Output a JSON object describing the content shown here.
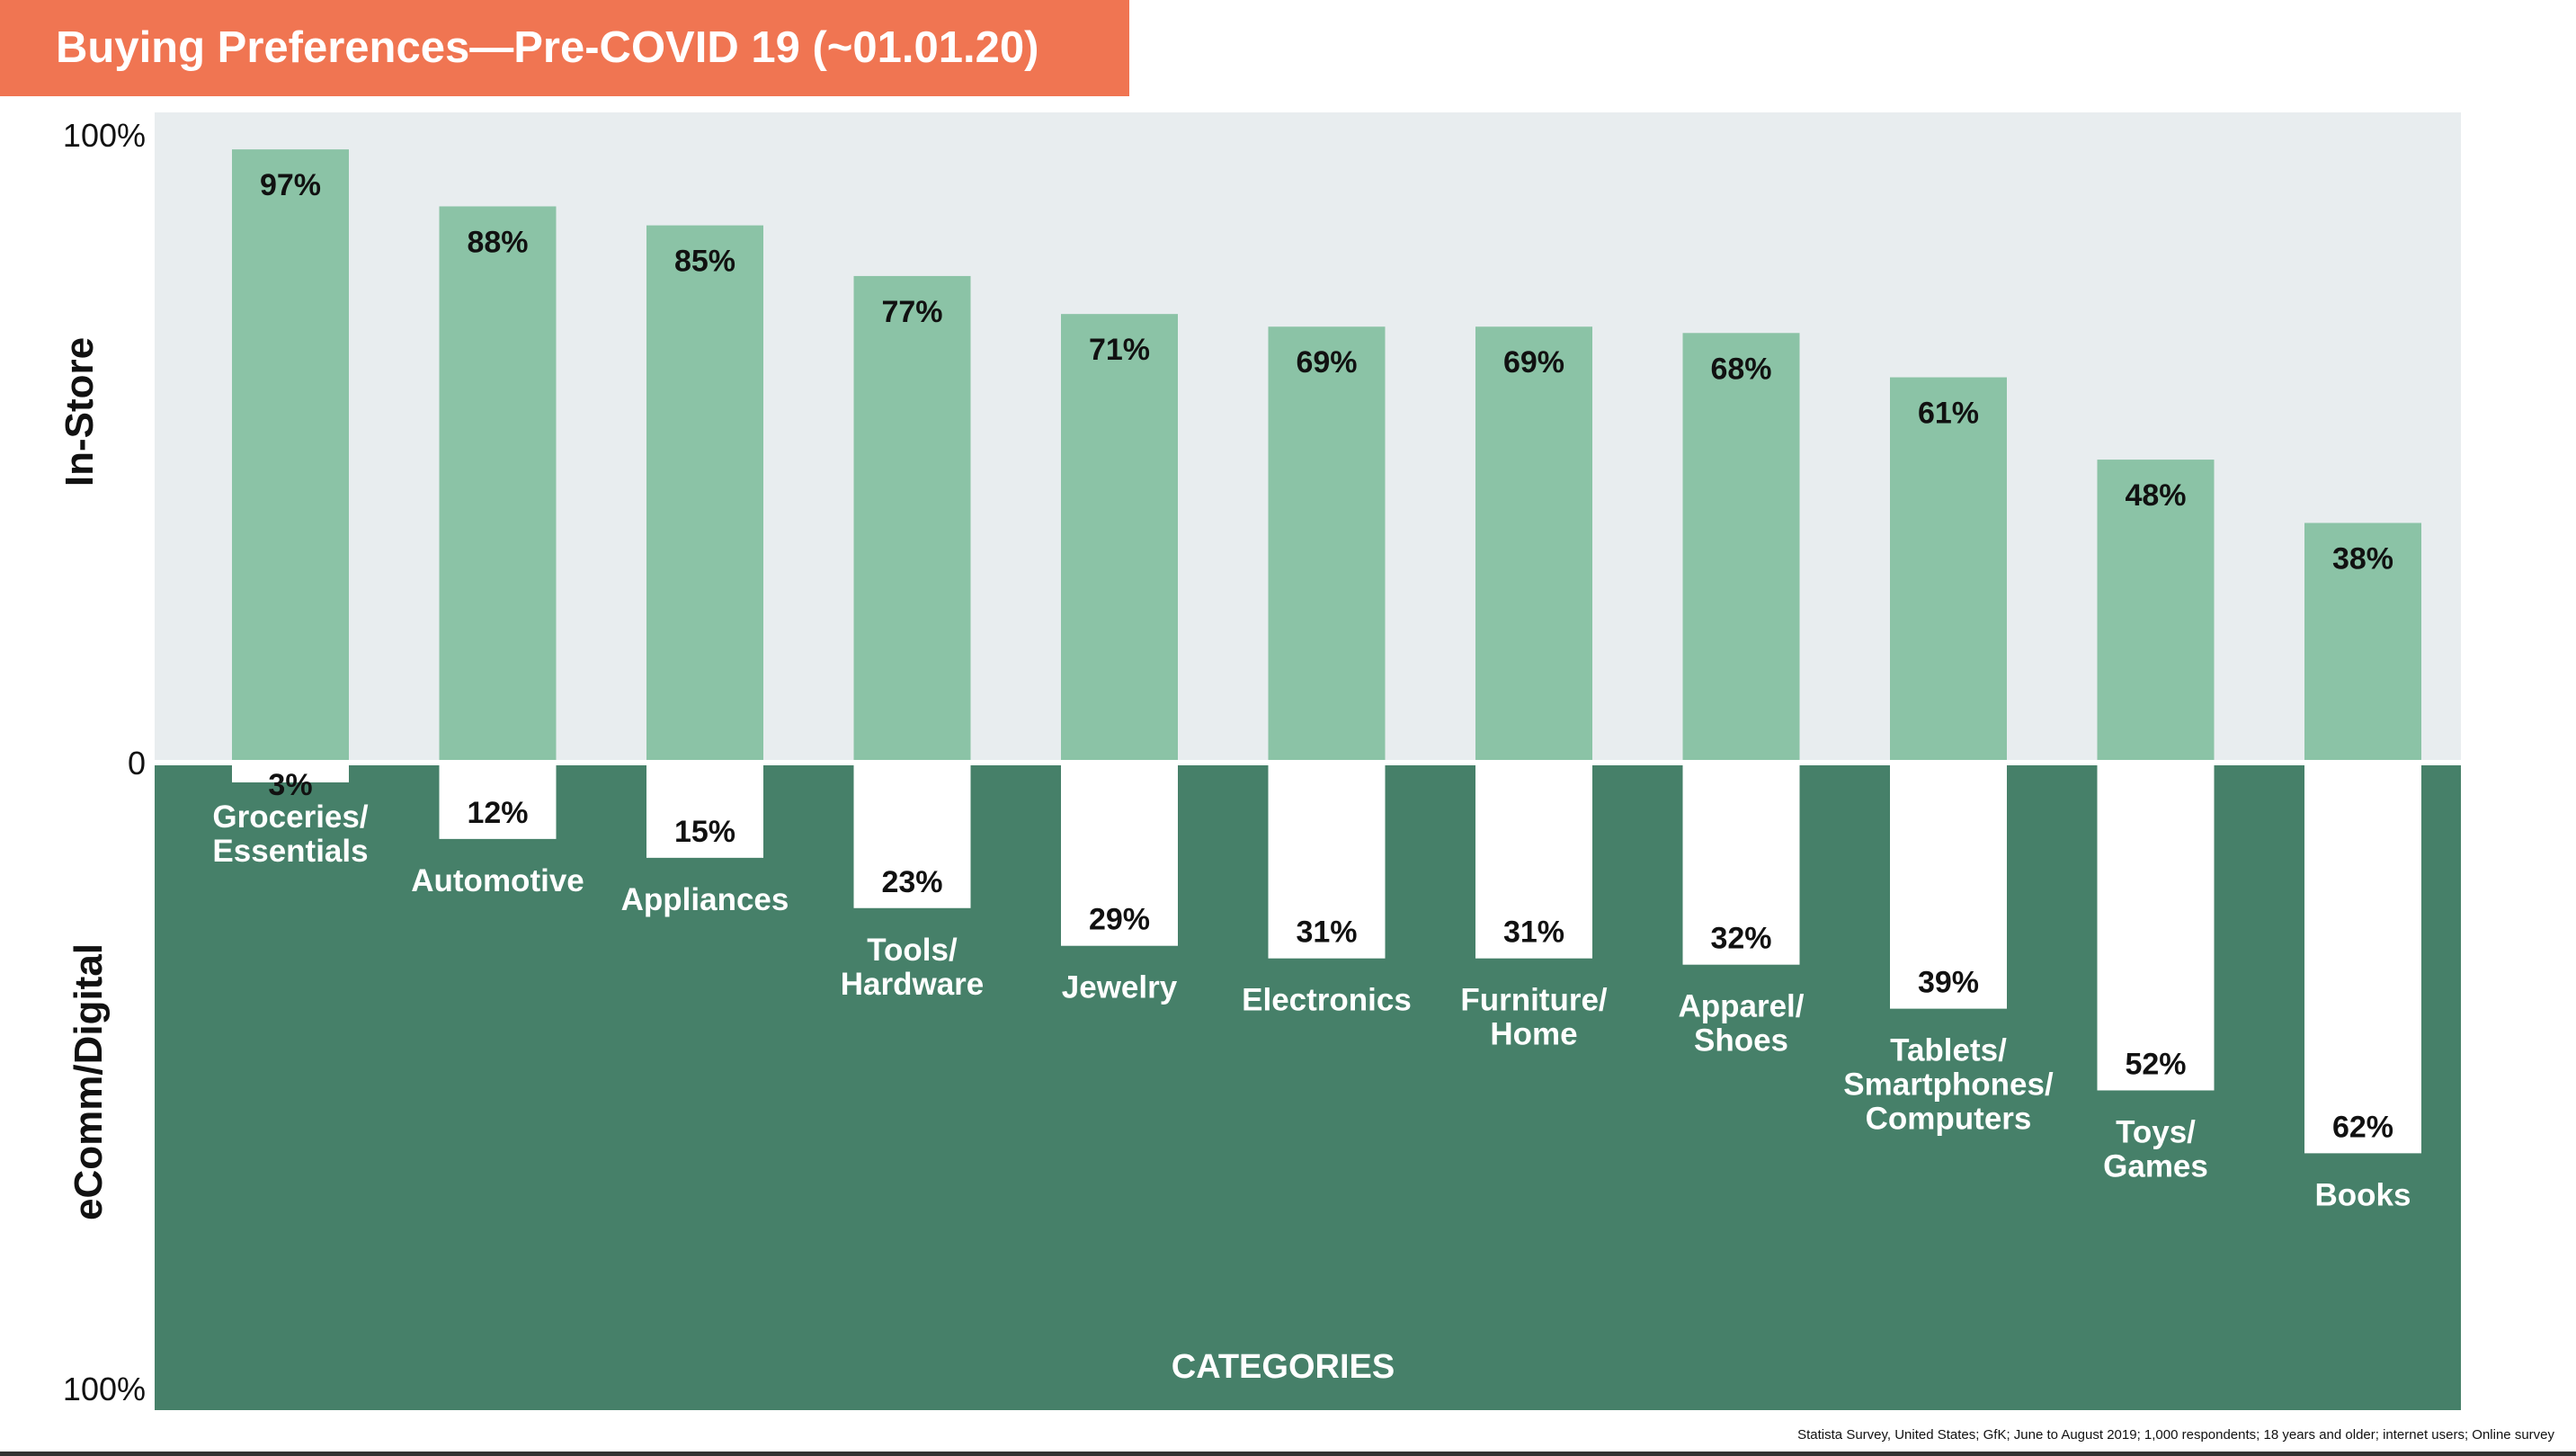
{
  "title": "Buying Preferences—Pre-COVID 19 (~01.01.20)",
  "source": "Statista Survey, United States; GfK; June to August 2019; 1,000 respondents; 18 years and older; internet users; Online survey",
  "colors": {
    "banner": "#f07552",
    "instore_bg": "#e8edef",
    "instore_bar": "#8bc3a6",
    "digital_bg": "#468069",
    "digital_bar": "#ffffff"
  },
  "chart_data": {
    "type": "bar",
    "orientation": "diverging-vertical",
    "categories": [
      "Groceries/\nEssentials",
      "Automotive",
      "Appliances",
      "Tools/\nHardware",
      "Jewelry",
      "Electronics",
      "Furniture/\nHome",
      "Apparel/\nShoes",
      "Tablets/\nSmartphones/\nComputers",
      "Toys/\nGames",
      "Books"
    ],
    "series": [
      {
        "name": "In-Store",
        "values": [
          97,
          88,
          85,
          77,
          71,
          69,
          69,
          68,
          61,
          48,
          38
        ],
        "labels": [
          "97%",
          "88%",
          "85%",
          "77%",
          "71%",
          "69%",
          "69%",
          "68%",
          "61%",
          "48%",
          "38%"
        ]
      },
      {
        "name": "eComm/Digital",
        "values": [
          3,
          12,
          15,
          23,
          29,
          31,
          31,
          32,
          39,
          52,
          62
        ],
        "labels": [
          "3%",
          "12%",
          "15%",
          "23%",
          "29%",
          "31%",
          "31%",
          "32%",
          "39%",
          "52%",
          "62%"
        ]
      }
    ],
    "y_axis_top_label": "In-Store",
    "y_axis_bottom_label": "eComm/Digital",
    "x_axis_label": "CATEGORIES",
    "ticks": [
      "100%",
      "0",
      "100%"
    ],
    "ylim": [
      0,
      100
    ]
  }
}
